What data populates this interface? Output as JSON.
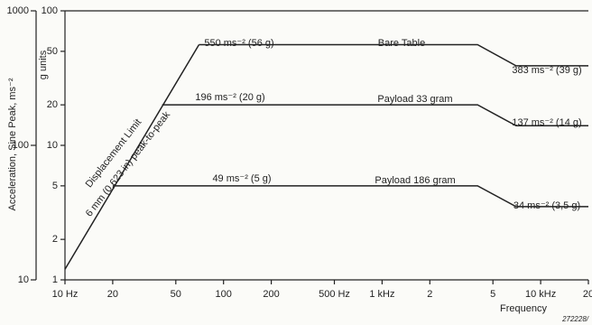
{
  "chart_data": {
    "type": "line",
    "y_label": "Acceleration, Sine Peak, ms⁻²",
    "y2_label": "g units",
    "x_label": "Frequency",
    "footnote": "272228/",
    "log_x": true,
    "log_y": true,
    "grid": false,
    "xlim": [
      10,
      20000
    ],
    "xticks": [
      {
        "value": 10,
        "label": "10 Hz"
      },
      20,
      50,
      100,
      200,
      {
        "value": 500,
        "label": "500 Hz"
      },
      {
        "value": 1000,
        "label": "1 kHz"
      },
      {
        "value": 2000,
        "label": "2"
      },
      {
        "value": 5000,
        "label": "5"
      },
      {
        "value": 10000,
        "label": "10 kHz"
      },
      {
        "value": 20000,
        "label": "20"
      }
    ],
    "ylim": [
      1,
      100
    ],
    "yticks": [
      1,
      2,
      5,
      10,
      20,
      50,
      100
    ],
    "y2lim": [
      10,
      1000
    ],
    "y2ticks": [
      10,
      100,
      1000
    ],
    "series": [
      {
        "name": "Displacement Limit",
        "color": "#222222",
        "x": [
          10,
          70
        ],
        "values": [
          1.2,
          56
        ]
      },
      {
        "name": "Bare Table",
        "color": "#222222",
        "x": [
          70,
          4000,
          7000,
          20000
        ],
        "values": [
          56,
          56,
          39,
          39
        ]
      },
      {
        "name": "Payload 33 gram",
        "color": "#222222",
        "x": [
          41,
          4000,
          7000,
          20000
        ],
        "values": [
          20,
          20,
          14,
          14
        ]
      },
      {
        "name": "Payload 186 gram",
        "color": "#222222",
        "x": [
          20,
          4000,
          7000,
          20000
        ],
        "values": [
          5,
          5,
          3.5,
          3.5
        ]
      }
    ],
    "annotations": [
      "6 mm (0,623 in) peak-to-peak",
      "550 ms⁻² (56 g)",
      "383 ms⁻² (39 g)",
      "196 ms⁻² (20 g)",
      "137 ms⁻² (14 g)",
      "49 ms⁻² (5 g)",
      "34 ms⁻² (3,5 g)"
    ]
  }
}
